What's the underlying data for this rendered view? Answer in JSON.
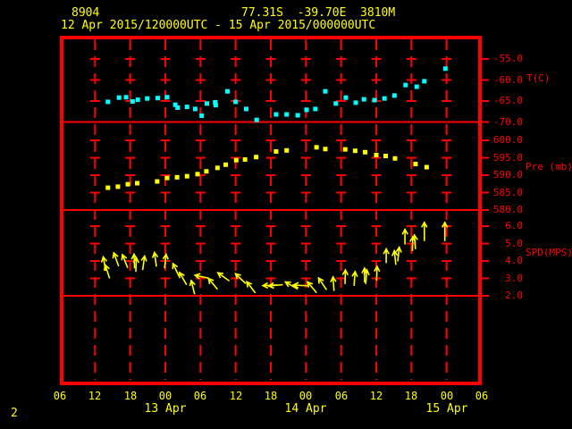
{
  "header": {
    "station_id": "8904",
    "position": "77.31S  -39.70E  3810M",
    "time_range": "12 Apr 2015/120000UTC - 15 Apr 2015/000000UTC"
  },
  "corner_label": "2",
  "colors": {
    "background": "#000000",
    "grid": "#ff0000",
    "axis_text": "#ff0000",
    "header_text": "#ffff00",
    "temperature_marker": "#00ffff",
    "pressure_marker": "#ffff00",
    "wind_arrow": "#ffff00"
  },
  "chart_data": {
    "type": "scatter",
    "title": "8904 station track time series",
    "x_axis": {
      "unit": "hours since 12 Apr 2015 06:00 UTC",
      "range": [
        0,
        72
      ],
      "tick_interval_hours": 6,
      "tick_labels": [
        "06",
        "12",
        "18",
        "00",
        "06",
        "12",
        "18",
        "00",
        "06",
        "12",
        "18",
        "00",
        "06"
      ],
      "date_labels": [
        {
          "label": "13 Apr",
          "hour": 18
        },
        {
          "label": "14 Apr",
          "hour": 42
        },
        {
          "label": "15 Apr",
          "hour": 66
        }
      ]
    },
    "panels": [
      {
        "name": "temperature",
        "unit_label": "T(C)",
        "tick_values": [
          -55,
          -60,
          -65,
          -70
        ],
        "tick_labels": [
          "-55.0",
          "-60.0",
          "-65.0",
          "-70.0"
        ]
      },
      {
        "name": "pressure",
        "unit_label": "Pre (mb)",
        "tick_values": [
          600,
          595,
          590,
          585,
          580
        ],
        "tick_labels": [
          "600.0",
          "595.0",
          "590.0",
          "585.0",
          "580.0"
        ]
      },
      {
        "name": "speed",
        "unit_label": "SPD(MPS)",
        "tick_values": [
          6,
          5,
          4,
          3,
          2
        ],
        "tick_labels": [
          "6.0",
          "5.0",
          "4.0",
          "3.0",
          "2.0"
        ]
      }
    ],
    "series": [
      {
        "name": "temperature",
        "panel": "temperature",
        "marker": "square",
        "color": "#00ffff",
        "points": [
          [
            8.2,
            -65.2
          ],
          [
            10.1,
            -64.2
          ],
          [
            11.3,
            -64.1
          ],
          [
            12.4,
            -65.1
          ],
          [
            13.3,
            -64.7
          ],
          [
            14.9,
            -64.4
          ],
          [
            16.7,
            -64.3
          ],
          [
            18.3,
            -64.1
          ],
          [
            19.7,
            -65.9
          ],
          [
            20.1,
            -66.6
          ],
          [
            21.7,
            -66.4
          ],
          [
            23.1,
            -66.9
          ],
          [
            24.2,
            -68.5
          ],
          [
            25.1,
            -65.6
          ],
          [
            26.5,
            -65.3
          ],
          [
            26.6,
            -66.0
          ],
          [
            28.6,
            -62.7
          ],
          [
            30.0,
            -65.2
          ],
          [
            31.8,
            -66.9
          ],
          [
            33.6,
            -69.5
          ],
          [
            36.9,
            -68.2
          ],
          [
            38.7,
            -68.2
          ],
          [
            40.6,
            -68.4
          ],
          [
            42.1,
            -67.1
          ],
          [
            43.6,
            -66.9
          ],
          [
            45.3,
            -62.7
          ],
          [
            47.1,
            -65.6
          ],
          [
            48.8,
            -64.2
          ],
          [
            50.5,
            -65.4
          ],
          [
            51.9,
            -64.6
          ],
          [
            53.7,
            -64.8
          ],
          [
            55.4,
            -64.4
          ],
          [
            57.1,
            -63.7
          ],
          [
            59.0,
            -61.2
          ],
          [
            60.9,
            -61.6
          ],
          [
            62.2,
            -60.3
          ],
          [
            65.8,
            -57.3
          ]
        ]
      },
      {
        "name": "pressure",
        "panel": "pressure",
        "marker": "square",
        "color": "#ffff00",
        "points": [
          [
            8.2,
            586.4
          ],
          [
            9.9,
            586.7
          ],
          [
            11.6,
            587.4
          ],
          [
            13.2,
            587.7
          ],
          [
            16.6,
            588.2
          ],
          [
            18.3,
            589.2
          ],
          [
            20.0,
            589.4
          ],
          [
            21.7,
            589.7
          ],
          [
            23.5,
            590.3
          ],
          [
            25.0,
            591.1
          ],
          [
            26.9,
            592.1
          ],
          [
            28.3,
            593.0
          ],
          [
            30.1,
            594.3
          ],
          [
            31.6,
            594.5
          ],
          [
            33.5,
            595.2
          ],
          [
            36.9,
            596.8
          ],
          [
            38.7,
            597.1
          ],
          [
            43.8,
            598.0
          ],
          [
            45.3,
            597.5
          ],
          [
            48.7,
            597.4
          ],
          [
            50.4,
            597.0
          ],
          [
            52.1,
            596.6
          ],
          [
            54.0,
            595.8
          ],
          [
            55.6,
            595.5
          ],
          [
            57.2,
            594.8
          ],
          [
            60.7,
            593.2
          ],
          [
            62.6,
            592.3
          ]
        ]
      },
      {
        "name": "wind",
        "panel": "speed",
        "marker": "arrow",
        "color": "#ffff00",
        "note": "points are [hour, speed_mps, arrow_angle_deg_from_up, optional_length_px]",
        "points": [
          [
            7.6,
            3.85,
            -10
          ],
          [
            8.1,
            3.4,
            -18
          ],
          [
            9.6,
            4.1,
            -20
          ],
          [
            11.1,
            4.0,
            -22
          ],
          [
            12.7,
            4.0,
            -2
          ],
          [
            13.0,
            3.8,
            2
          ],
          [
            14.3,
            3.9,
            8
          ],
          [
            16.3,
            4.1,
            -8
          ],
          [
            18.0,
            4.0,
            6
          ],
          [
            19.8,
            3.5,
            -25
          ],
          [
            21.0,
            3.0,
            -30
          ],
          [
            22.7,
            2.5,
            -14
          ],
          [
            24.2,
            3.1,
            -78
          ],
          [
            26.1,
            2.7,
            -40
          ],
          [
            27.9,
            3.1,
            -55
          ],
          [
            30.8,
            3.0,
            -46
          ],
          [
            32.6,
            2.5,
            -38
          ],
          [
            35.8,
            2.6,
            -92
          ],
          [
            36.8,
            2.6,
            -95
          ],
          [
            39.5,
            2.6,
            -60
          ],
          [
            41.0,
            2.6,
            -87
          ],
          [
            43.0,
            2.5,
            -40
          ],
          [
            44.8,
            2.7,
            -34
          ],
          [
            46.7,
            2.7,
            -4
          ],
          [
            48.7,
            3.1,
            2
          ],
          [
            50.3,
            3.0,
            4
          ],
          [
            52.0,
            3.2,
            0
          ],
          [
            52.3,
            3.1,
            5
          ],
          [
            54.1,
            3.3,
            2
          ],
          [
            55.7,
            4.3,
            0
          ],
          [
            57.2,
            4.2,
            -6
          ],
          [
            57.8,
            4.4,
            6
          ],
          [
            58.9,
            5.4,
            0,
            16
          ],
          [
            60.2,
            5.0,
            2
          ],
          [
            60.6,
            5.1,
            -4
          ],
          [
            62.2,
            5.7,
            0,
            20
          ],
          [
            65.7,
            5.7,
            0,
            20
          ]
        ]
      }
    ],
    "grid": true,
    "legend": "none"
  }
}
